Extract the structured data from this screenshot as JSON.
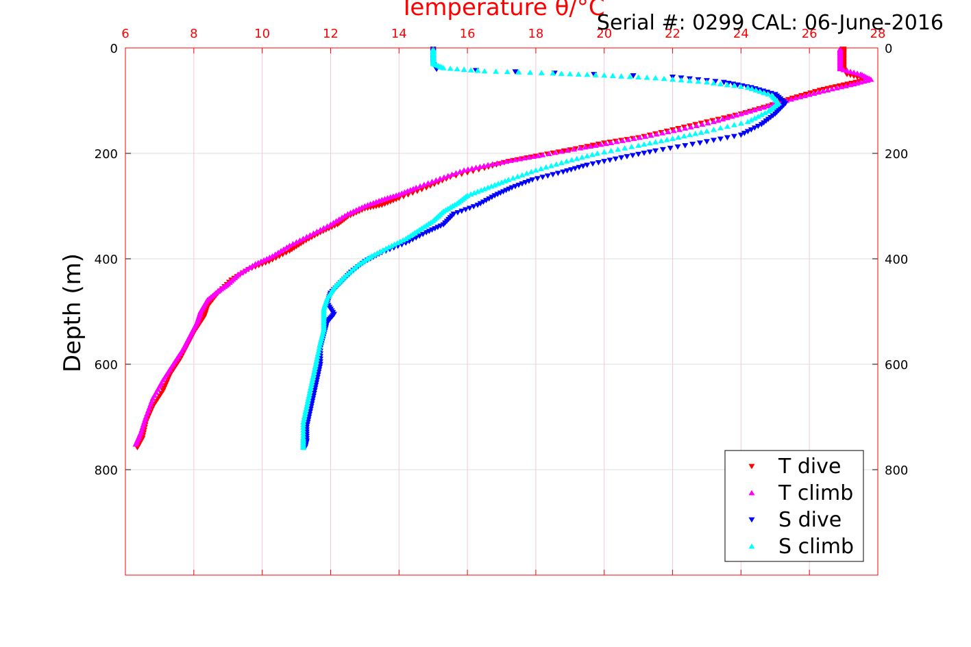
{
  "chart_data": {
    "type": "scatter",
    "title": "Temperature θ/°C",
    "subtitle": "Serial #: 0299 CAL: 06-June-2016",
    "ylabel": "Depth (m)",
    "xlabel": "",
    "xlim": [
      6,
      28
    ],
    "ylim": [
      0,
      1000
    ],
    "y_reversed": true,
    "x_axis_position": "top",
    "grid": true,
    "legend_position": "bottom-right",
    "x_ticks": [
      "6",
      "8",
      "10",
      "12",
      "14",
      "16",
      "18",
      "20",
      "22",
      "24",
      "26",
      "28"
    ],
    "y_ticks": [
      "0",
      "200",
      "400",
      "600",
      "800"
    ],
    "series": [
      {
        "name": "T dive",
        "color": "#ff0000",
        "marker": "triangle-down",
        "points": [
          [
            27.0,
            2
          ],
          [
            27.0,
            10
          ],
          [
            27.0,
            20
          ],
          [
            27.0,
            30
          ],
          [
            27.0,
            40
          ],
          [
            27.1,
            50
          ],
          [
            27.7,
            60
          ],
          [
            27.0,
            70
          ],
          [
            26.3,
            80
          ],
          [
            25.5,
            95
          ],
          [
            24.8,
            110
          ],
          [
            24.0,
            125
          ],
          [
            23.0,
            140
          ],
          [
            22.0,
            155
          ],
          [
            21.0,
            170
          ],
          [
            20.0,
            180
          ],
          [
            19.0,
            193
          ],
          [
            18.0,
            205
          ],
          [
            17.2,
            215
          ],
          [
            16.5,
            228
          ],
          [
            15.5,
            245
          ],
          [
            14.8,
            265
          ],
          [
            14.0,
            285
          ],
          [
            13.5,
            298
          ],
          [
            13.0,
            305
          ],
          [
            12.5,
            320
          ],
          [
            12.2,
            335
          ],
          [
            11.7,
            350
          ],
          [
            11.2,
            368
          ],
          [
            10.8,
            385
          ],
          [
            10.2,
            405
          ],
          [
            9.6,
            420
          ],
          [
            9.1,
            440
          ],
          [
            8.7,
            465
          ],
          [
            8.4,
            490
          ],
          [
            8.3,
            510
          ],
          [
            8.0,
            540
          ],
          [
            7.8,
            565
          ],
          [
            7.6,
            590
          ],
          [
            7.3,
            620
          ],
          [
            7.1,
            650
          ],
          [
            6.8,
            680
          ],
          [
            6.6,
            710
          ],
          [
            6.5,
            740
          ],
          [
            6.35,
            758
          ]
        ]
      },
      {
        "name": "T climb",
        "color": "#ff00ff",
        "marker": "triangle-up",
        "points": [
          [
            26.9,
            2
          ],
          [
            26.9,
            10
          ],
          [
            26.9,
            20
          ],
          [
            26.9,
            30
          ],
          [
            26.9,
            40
          ],
          [
            27.5,
            50
          ],
          [
            27.8,
            60
          ],
          [
            27.2,
            70
          ],
          [
            26.4,
            82
          ],
          [
            25.6,
            95
          ],
          [
            24.8,
            110
          ],
          [
            24.0,
            125
          ],
          [
            23.2,
            140
          ],
          [
            22.2,
            155
          ],
          [
            21.2,
            168
          ],
          [
            20.2,
            180
          ],
          [
            19.3,
            190
          ],
          [
            18.2,
            203
          ],
          [
            17.4,
            212
          ],
          [
            16.6,
            222
          ],
          [
            15.9,
            232
          ],
          [
            15.2,
            248
          ],
          [
            14.5,
            265
          ],
          [
            14.0,
            278
          ],
          [
            13.5,
            288
          ],
          [
            13.0,
            300
          ],
          [
            12.5,
            315
          ],
          [
            12.0,
            335
          ],
          [
            11.4,
            355
          ],
          [
            10.8,
            375
          ],
          [
            10.3,
            395
          ],
          [
            9.8,
            410
          ],
          [
            9.3,
            430
          ],
          [
            9.0,
            448
          ],
          [
            8.7,
            462
          ],
          [
            8.4,
            478
          ],
          [
            8.2,
            500
          ],
          [
            8.1,
            520
          ],
          [
            7.9,
            545
          ],
          [
            7.7,
            570
          ],
          [
            7.4,
            600
          ],
          [
            7.1,
            630
          ],
          [
            6.8,
            665
          ],
          [
            6.6,
            700
          ],
          [
            6.45,
            730
          ],
          [
            6.3,
            752
          ]
        ]
      },
      {
        "name": "S dive",
        "color": "#0000ff",
        "marker": "triangle-down",
        "points": [
          [
            15.0,
            2
          ],
          [
            15.0,
            10
          ],
          [
            15.0,
            20
          ],
          [
            15.0,
            30
          ],
          [
            15.1,
            40
          ],
          [
            22.0,
            55
          ],
          [
            23.5,
            65
          ],
          [
            24.3,
            75
          ],
          [
            25.0,
            88
          ],
          [
            25.3,
            105
          ],
          [
            25.0,
            125
          ],
          [
            24.6,
            145
          ],
          [
            24.0,
            165
          ],
          [
            22.8,
            180
          ],
          [
            21.5,
            195
          ],
          [
            20.5,
            208
          ],
          [
            19.5,
            222
          ],
          [
            18.8,
            235
          ],
          [
            17.9,
            250
          ],
          [
            17.3,
            265
          ],
          [
            16.8,
            280
          ],
          [
            16.3,
            298
          ],
          [
            15.6,
            315
          ],
          [
            15.3,
            335
          ],
          [
            14.8,
            350
          ],
          [
            14.2,
            370
          ],
          [
            13.5,
            388
          ],
          [
            13.0,
            405
          ],
          [
            12.6,
            425
          ],
          [
            12.3,
            445
          ],
          [
            12.0,
            465
          ],
          [
            11.9,
            485
          ],
          [
            12.1,
            505
          ],
          [
            11.9,
            520
          ],
          [
            11.8,
            545
          ],
          [
            11.7,
            570
          ],
          [
            11.7,
            600
          ],
          [
            11.6,
            630
          ],
          [
            11.5,
            660
          ],
          [
            11.4,
            690
          ],
          [
            11.3,
            720
          ],
          [
            11.3,
            745
          ],
          [
            11.25,
            758
          ]
        ]
      },
      {
        "name": "S climb",
        "color": "#00ffff",
        "marker": "triangle-up",
        "points": [
          [
            15.0,
            2
          ],
          [
            15.0,
            10
          ],
          [
            15.0,
            20
          ],
          [
            15.0,
            30
          ],
          [
            15.3,
            38
          ],
          [
            16.5,
            44
          ],
          [
            18.5,
            48
          ],
          [
            20.0,
            52
          ],
          [
            21.5,
            57
          ],
          [
            23.0,
            65
          ],
          [
            24.2,
            75
          ],
          [
            24.9,
            90
          ],
          [
            25.1,
            105
          ],
          [
            24.8,
            120
          ],
          [
            24.2,
            140
          ],
          [
            23.0,
            158
          ],
          [
            22.0,
            172
          ],
          [
            21.0,
            185
          ],
          [
            19.8,
            200
          ],
          [
            18.9,
            215
          ],
          [
            18.0,
            232
          ],
          [
            17.2,
            250
          ],
          [
            16.6,
            265
          ],
          [
            16.0,
            280
          ],
          [
            15.7,
            295
          ],
          [
            15.3,
            310
          ],
          [
            15.0,
            328
          ],
          [
            14.6,
            345
          ],
          [
            14.2,
            362
          ],
          [
            13.7,
            378
          ],
          [
            13.2,
            395
          ],
          [
            12.8,
            412
          ],
          [
            12.4,
            435
          ],
          [
            12.1,
            455
          ],
          [
            11.9,
            475
          ],
          [
            11.8,
            495
          ],
          [
            11.8,
            515
          ],
          [
            11.8,
            535
          ],
          [
            11.7,
            560
          ],
          [
            11.6,
            590
          ],
          [
            11.5,
            620
          ],
          [
            11.4,
            650
          ],
          [
            11.3,
            680
          ],
          [
            11.2,
            710
          ],
          [
            11.2,
            740
          ],
          [
            11.2,
            758
          ]
        ]
      }
    ]
  }
}
